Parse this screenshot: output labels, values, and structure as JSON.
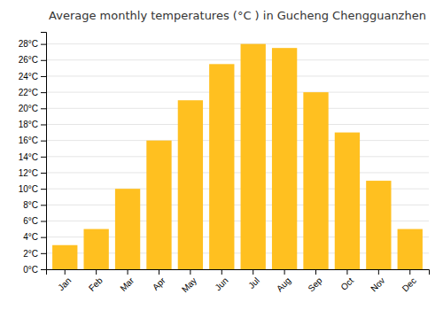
{
  "chart_data": {
    "type": "bar",
    "title": "Average monthly temperatures (°C ) in Gucheng Chengguanzhen",
    "categories": [
      "Jan",
      "Feb",
      "Mar",
      "Apr",
      "May",
      "Jun",
      "Jul",
      "Aug",
      "Sep",
      "Oct",
      "Nov",
      "Dec"
    ],
    "values": [
      3.0,
      5.0,
      10.0,
      16.0,
      21.0,
      25.5,
      28.0,
      27.5,
      22.0,
      17.0,
      11.0,
      5.0
    ],
    "color": "#FFC020",
    "ylim": [
      0,
      29.5
    ],
    "yticks": [
      {
        "value": 0,
        "label": "0°C"
      },
      {
        "value": 2,
        "label": "2°C"
      },
      {
        "value": 4,
        "label": "4°C"
      },
      {
        "value": 6,
        "label": "6°C"
      },
      {
        "value": 8,
        "label": "8°C"
      },
      {
        "value": 10,
        "label": "10°C"
      },
      {
        "value": 12,
        "label": "12°C"
      },
      {
        "value": 14,
        "label": "14°C"
      },
      {
        "value": 16,
        "label": "16°C"
      },
      {
        "value": 18,
        "label": "18°C"
      },
      {
        "value": 20,
        "label": "20°C"
      },
      {
        "value": 22,
        "label": "22°C"
      },
      {
        "value": 24,
        "label": "24°C"
      },
      {
        "value": 26,
        "label": "26°C"
      },
      {
        "value": 28,
        "label": "28°C"
      }
    ],
    "grid": true
  }
}
